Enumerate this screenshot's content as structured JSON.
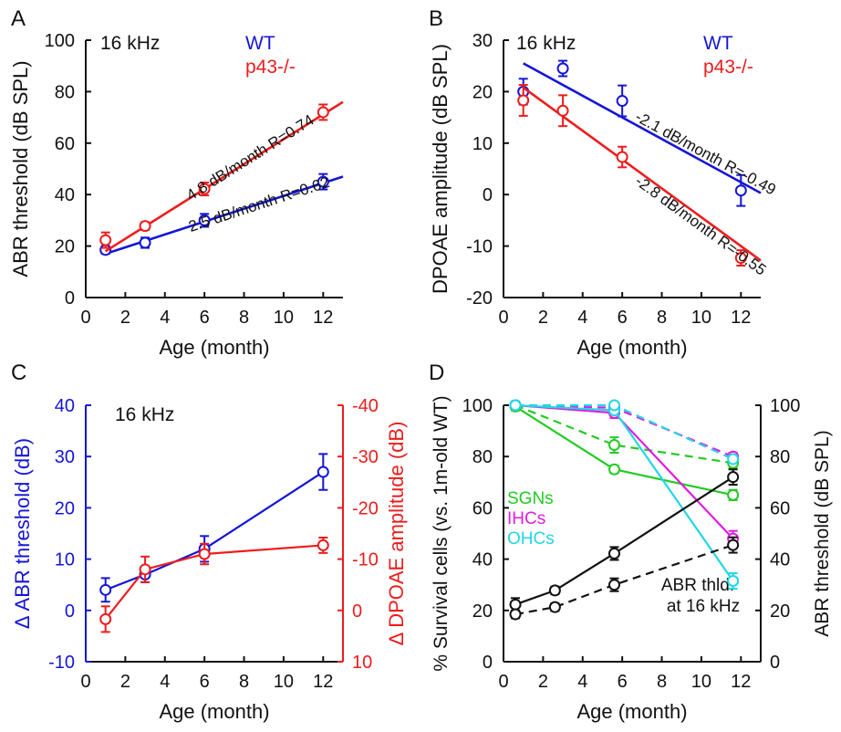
{
  "colors": {
    "wt": "#1515d8",
    "ko": "#ee1c1c",
    "green": "#22cc22",
    "magenta": "#e01ce0",
    "cyan": "#22d6e6",
    "black": "#111111"
  },
  "chart_data": [
    {
      "panel": "A",
      "type": "scatter",
      "annotation": "16 kHz",
      "xlabel": "Age (month)",
      "ylabel": "ABR threshold (dB SPL)",
      "xlim": [
        0,
        13
      ],
      "ylim": [
        0,
        100
      ],
      "xticks": [
        "0",
        "2",
        "4",
        "6",
        "8",
        "10",
        "12"
      ],
      "yticks": [
        "0",
        "20",
        "40",
        "60",
        "80",
        "100"
      ],
      "legend": [
        "WT",
        "p43-/-"
      ],
      "series": [
        {
          "name": "WT",
          "color": "wt",
          "x": [
            1,
            3,
            6,
            12
          ],
          "y": [
            18.5,
            21.3,
            30,
            45
          ],
          "err": [
            1.5,
            2,
            2.5,
            3
          ],
          "fit": {
            "x": [
              1,
              13
            ],
            "y": [
              17,
              47
            ]
          },
          "fit_label": "2.5  dB/month R=0.62"
        },
        {
          "name": "p43-/-",
          "color": "ko",
          "x": [
            1,
            3,
            6,
            12
          ],
          "y": [
            22.3,
            27.8,
            42.2,
            72
          ],
          "err": [
            3,
            1.5,
            2.5,
            3
          ],
          "fit": {
            "x": [
              1,
              13
            ],
            "y": [
              18,
              76
            ]
          },
          "fit_label": "4.8  dB/month R=0.74"
        }
      ]
    },
    {
      "panel": "B",
      "type": "scatter",
      "annotation": "16 kHz",
      "xlabel": "Age (month)",
      "ylabel": "DPOAE amplitude (dB SPL)",
      "xlim": [
        0,
        13
      ],
      "ylim": [
        -20,
        30
      ],
      "xticks": [
        "0",
        "2",
        "4",
        "6",
        "8",
        "10",
        "12"
      ],
      "yticks": [
        "-20",
        "-10",
        "0",
        "10",
        "20",
        "30"
      ],
      "legend": [
        "WT",
        "p43-/-"
      ],
      "series": [
        {
          "name": "WT",
          "color": "wt",
          "x": [
            1,
            3,
            6,
            12
          ],
          "y": [
            20,
            24.5,
            18.2,
            0.8
          ],
          "err": [
            2.5,
            1.5,
            3,
            3
          ],
          "fit": {
            "x": [
              1,
              13
            ],
            "y": [
              25.5,
              0.3
            ]
          },
          "fit_label": "-2.1  dB/month R=-0.49"
        },
        {
          "name": "p43-/-",
          "color": "ko",
          "x": [
            1,
            3,
            6,
            12
          ],
          "y": [
            18.3,
            16.3,
            7.3,
            -12.3
          ],
          "err": [
            3,
            3,
            2,
            1.5
          ],
          "fit": {
            "x": [
              1,
              13
            ],
            "y": [
              20.8,
              -12.8
            ]
          },
          "fit_label": "-2.8  dB/month R=-0.55"
        }
      ]
    },
    {
      "panel": "C",
      "type": "line",
      "annotation": "16 kHz",
      "xlabel": "Age (month)",
      "ylabel": "ABR threshold (dB)",
      "ylabel_right": "DPOAE amplitude (dB)",
      "delta_symbol": "Δ",
      "xlim": [
        0,
        13
      ],
      "ylim": [
        -10,
        40
      ],
      "ylim_right": [
        10,
        -40
      ],
      "xticks": [
        "0",
        "2",
        "4",
        "6",
        "8",
        "10",
        "12"
      ],
      "yticks": [
        "-10",
        "0",
        "10",
        "20",
        "30",
        "40"
      ],
      "yticks_right": [
        "10",
        "0",
        "-10",
        "-20",
        "-30",
        "-40"
      ],
      "series": [
        {
          "name": "Δ ABR threshold",
          "color": "wt",
          "axis": "left",
          "x": [
            1,
            3,
            6,
            12
          ],
          "y": [
            4,
            7,
            12,
            27
          ],
          "err": [
            2.3,
            1.5,
            2.5,
            3.5
          ]
        },
        {
          "name": "Δ DPOAE amplitude",
          "color": "ko",
          "axis": "right",
          "x": [
            1,
            3,
            6,
            12
          ],
          "y": [
            1.7,
            -8,
            -11,
            -12.7
          ],
          "err": [
            2.5,
            2.5,
            2,
            1.5
          ]
        }
      ]
    },
    {
      "panel": "D",
      "type": "line",
      "xlabel": "Age (month)",
      "ylabel": "% Survival cells (vs. 1m-old WT)",
      "ylabel_right": "ABR threshold (dB SPL)",
      "xlim": [
        0,
        13
      ],
      "ylim": [
        0,
        100
      ],
      "ylim_right": [
        0,
        100
      ],
      "xticks": [
        "0",
        "2",
        "4",
        "6",
        "8",
        "10",
        "12"
      ],
      "yticks": [
        "0",
        "20",
        "40",
        "60",
        "80",
        "100"
      ],
      "yticks_right": [
        "0",
        "20",
        "40",
        "60",
        "80",
        "100"
      ],
      "legend": [
        "SGNs",
        "IHCs",
        "OHCs"
      ],
      "annotation_lines": [
        "ABR thld.",
        "at 16 kHz"
      ],
      "series": [
        {
          "name": "SGNs p43-/-",
          "color": "green",
          "dash": false,
          "x": [
            0.6,
            5.6,
            11.6
          ],
          "y": [
            99.5,
            75,
            65
          ],
          "err": [
            1.5,
            1.5,
            2
          ]
        },
        {
          "name": "SGNs WT",
          "color": "green",
          "dash": true,
          "x": [
            0.6,
            5.6,
            11.6
          ],
          "y": [
            100,
            84.5,
            77.5
          ],
          "err": [
            1.5,
            3,
            2
          ]
        },
        {
          "name": "IHCs p43-/-",
          "color": "magenta",
          "dash": false,
          "x": [
            0.6,
            5.6,
            11.6
          ],
          "y": [
            100,
            97,
            48
          ],
          "err": [
            1,
            2,
            3
          ]
        },
        {
          "name": "IHCs WT",
          "color": "magenta",
          "dash": true,
          "x": [
            0.6,
            5.6,
            11.6
          ],
          "y": [
            100,
            99,
            80
          ],
          "err": [
            1,
            1,
            1.5
          ]
        },
        {
          "name": "OHCs p43-/-",
          "color": "cyan",
          "dash": false,
          "x": [
            0.6,
            5.6,
            11.6
          ],
          "y": [
            100,
            98,
            31.5
          ],
          "err": [
            1,
            1.5,
            3
          ]
        },
        {
          "name": "OHCs WT",
          "color": "cyan",
          "dash": true,
          "x": [
            0.6,
            5.6,
            11.6
          ],
          "y": [
            100,
            100,
            79
          ],
          "err": [
            1,
            1,
            1.5
          ]
        },
        {
          "name": "ABR p43-/-",
          "color": "black",
          "dash": false,
          "axis": "right",
          "x": [
            0.6,
            2.6,
            5.6,
            11.6
          ],
          "y": [
            22.3,
            27.8,
            42.2,
            72
          ],
          "err": [
            2.5,
            1.5,
            2.5,
            3
          ]
        },
        {
          "name": "ABR WT",
          "color": "black",
          "dash": true,
          "axis": "right",
          "x": [
            0.6,
            2.6,
            5.6,
            11.6
          ],
          "y": [
            18.5,
            21.3,
            30,
            45.5
          ],
          "err": [
            1.5,
            1.5,
            2.5,
            3
          ]
        }
      ]
    }
  ]
}
